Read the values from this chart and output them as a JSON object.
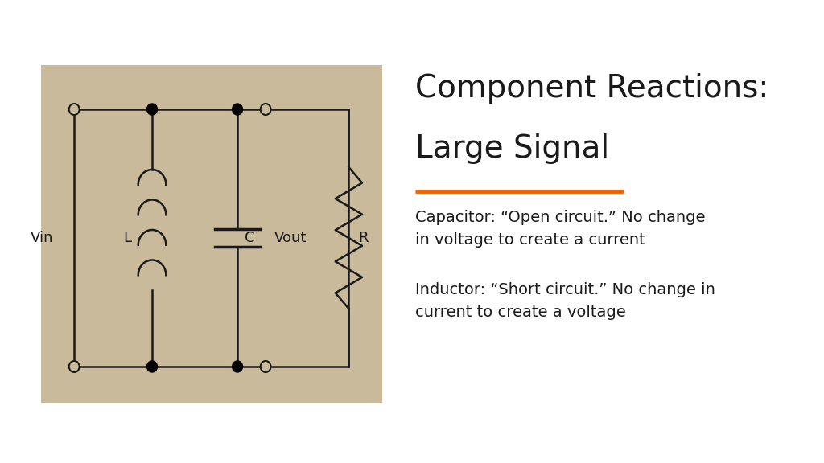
{
  "title_line1": "Component Reactions:",
  "title_line2": "Large Signal",
  "title_fontsize": 28,
  "title_color": "#1a1a1a",
  "orange_line_color": "#E8650A",
  "text1": "Capacitor: “Open circuit.” No change\nin voltage to create a current",
  "text2": "Inductor: “Short circuit.” No change in\ncurrent to create a voltage",
  "text_fontsize": 14,
  "text_color": "#1a1a1a",
  "bg_color": "#ffffff",
  "circuit_bg": "#C8BA9A",
  "circuit_line_color": "#1a1a1a"
}
